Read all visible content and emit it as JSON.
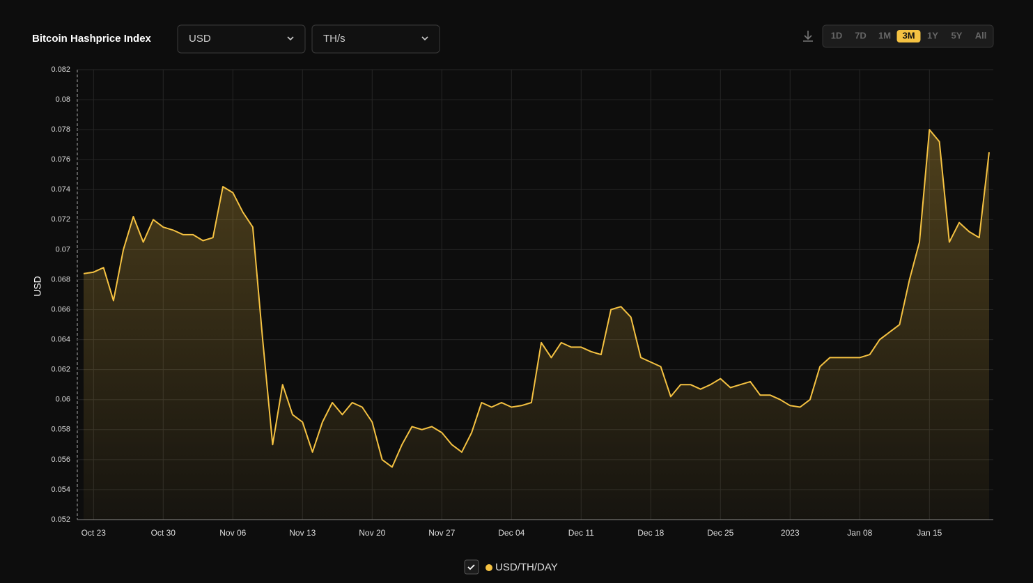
{
  "controls": {
    "currency": "USD",
    "unit": "TH/s",
    "ranges": [
      "1D",
      "7D",
      "1M",
      "3M",
      "1Y",
      "5Y",
      "All"
    ],
    "active_range": "3M"
  },
  "chart_data": {
    "type": "line",
    "title": "Bitcoin Hashprice Index",
    "y_label": "USD",
    "categories": [
      null,
      "Oct 23",
      null,
      null,
      null,
      null,
      null,
      null,
      "Oct 30",
      null,
      null,
      null,
      null,
      null,
      null,
      "Nov 06",
      null,
      null,
      null,
      null,
      null,
      null,
      "Nov 13",
      null,
      null,
      null,
      null,
      null,
      null,
      "Nov 20",
      null,
      null,
      null,
      null,
      null,
      null,
      "Nov 27",
      null,
      null,
      null,
      null,
      null,
      null,
      "Dec 04",
      null,
      null,
      null,
      null,
      null,
      null,
      "Dec 11",
      null,
      null,
      null,
      null,
      null,
      null,
      "Dec 18",
      null,
      null,
      null,
      null,
      null,
      null,
      "Dec 25",
      null,
      null,
      null,
      null,
      null,
      null,
      "2023",
      null,
      null,
      null,
      null,
      null,
      null,
      "Jan 08",
      null,
      null,
      null,
      null,
      null,
      null,
      "Jan 15",
      null,
      null,
      null,
      null,
      null,
      null
    ],
    "series": [
      {
        "name": "USD/TH/DAY",
        "color": "#f5c242",
        "values": [
          0.0684,
          0.0685,
          0.0688,
          0.0666,
          0.07,
          0.0722,
          0.0705,
          0.072,
          0.0715,
          0.0713,
          0.071,
          0.071,
          0.0706,
          0.0708,
          0.0742,
          0.0738,
          0.0725,
          0.0715,
          0.064,
          0.057,
          0.061,
          0.059,
          0.0585,
          0.0565,
          0.0585,
          0.0598,
          0.059,
          0.0598,
          0.0595,
          0.0585,
          0.056,
          0.0555,
          0.057,
          0.0582,
          0.058,
          0.0582,
          0.0578,
          0.057,
          0.0565,
          0.0578,
          0.0598,
          0.0595,
          0.0598,
          0.0595,
          0.0596,
          0.0598,
          0.0638,
          0.0628,
          0.0638,
          0.0635,
          0.0635,
          0.0632,
          0.063,
          0.066,
          0.0662,
          0.0655,
          0.0628,
          0.0625,
          0.0622,
          0.0602,
          0.061,
          0.061,
          0.0607,
          0.061,
          0.0614,
          0.0608,
          0.061,
          0.0612,
          0.0603,
          0.0603,
          0.06,
          0.0596,
          0.0595,
          0.06,
          0.0622,
          0.0628,
          0.0628,
          0.0628,
          0.0628,
          0.063,
          0.064,
          0.0645,
          0.065,
          0.068,
          0.0705,
          0.078,
          0.0772,
          0.0705,
          0.0718,
          0.0712,
          0.0708,
          0.0765
        ]
      }
    ],
    "ylim": [
      0.052,
      0.082
    ],
    "yticks": [
      0.052,
      0.054,
      0.056,
      0.058,
      0.06,
      0.062,
      0.064,
      0.066,
      0.068,
      0.07,
      0.072,
      0.074,
      0.076,
      0.078,
      0.08,
      0.082
    ],
    "grid": true
  }
}
